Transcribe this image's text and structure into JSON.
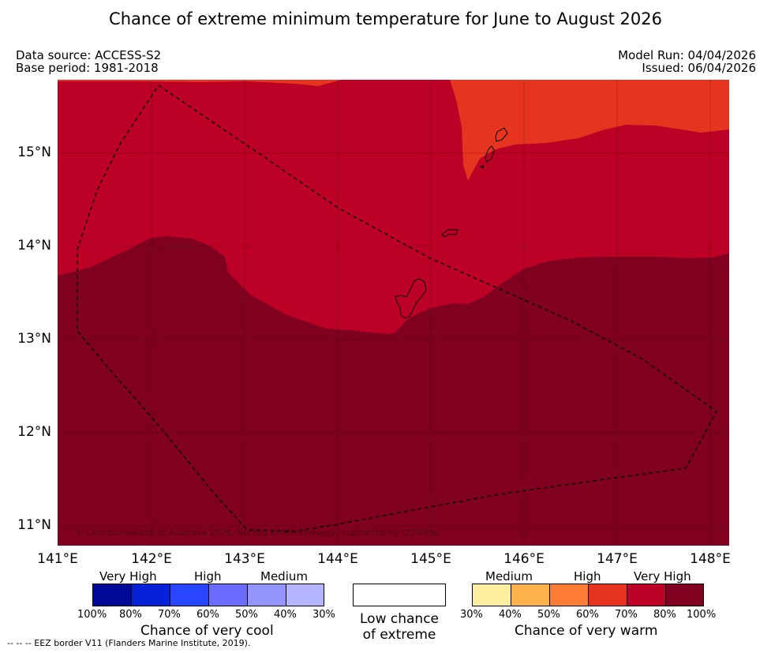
{
  "title": "Chance of extreme minimum temperature for June to August 2026",
  "meta": {
    "data_source": "Data source: ACCESS-S2",
    "base_period": "Base period: 1981-2018",
    "model_run": "Model Run: 04/04/2026",
    "issued": "Issued: 06/04/2026"
  },
  "map": {
    "lat_ticks": [
      "15°N",
      "14°N",
      "13°N",
      "12°N",
      "11°N"
    ],
    "lon_ticks": [
      "141°E",
      "142°E",
      "143°E",
      "144°E",
      "145°E",
      "146°E",
      "147°E",
      "148°E"
    ],
    "copyright": "© Commonwealth of Australia 2026, Bureau of Meteorology, supported by COSPPac",
    "regions": [
      {
        "name": "very-high-warm-80-100",
        "color": "#800020"
      },
      {
        "name": "very-high-warm-70-80",
        "color": "#bd0026"
      },
      {
        "name": "high-warm-60-70",
        "color": "#e6341f"
      }
    ]
  },
  "legend": {
    "cool": {
      "headings": [
        "Very High",
        "High",
        "Medium"
      ],
      "colors": [
        "#000a96",
        "#0522d8",
        "#2845ff",
        "#6b6bff",
        "#9494ff",
        "#b4b4ff"
      ],
      "percents": [
        "100%",
        "80%",
        "70%",
        "60%",
        "50%",
        "40%",
        "30%"
      ],
      "title": "Chance of very cool"
    },
    "neutral": {
      "title_line1": "Low chance",
      "title_line2": "of extreme",
      "color": "#ffffff"
    },
    "warm": {
      "headings": [
        "Medium",
        "High",
        "Very High"
      ],
      "colors": [
        "#ffeda0",
        "#feb24c",
        "#fd7c35",
        "#e6341f",
        "#bd0026",
        "#800020"
      ],
      "percents": [
        "30%",
        "40%",
        "50%",
        "60%",
        "70%",
        "80%",
        "100%"
      ],
      "title": "Chance of very warm"
    }
  },
  "footnote": "-- -- -- EEZ border V11 (Flanders Marine Institute, 2019)."
}
